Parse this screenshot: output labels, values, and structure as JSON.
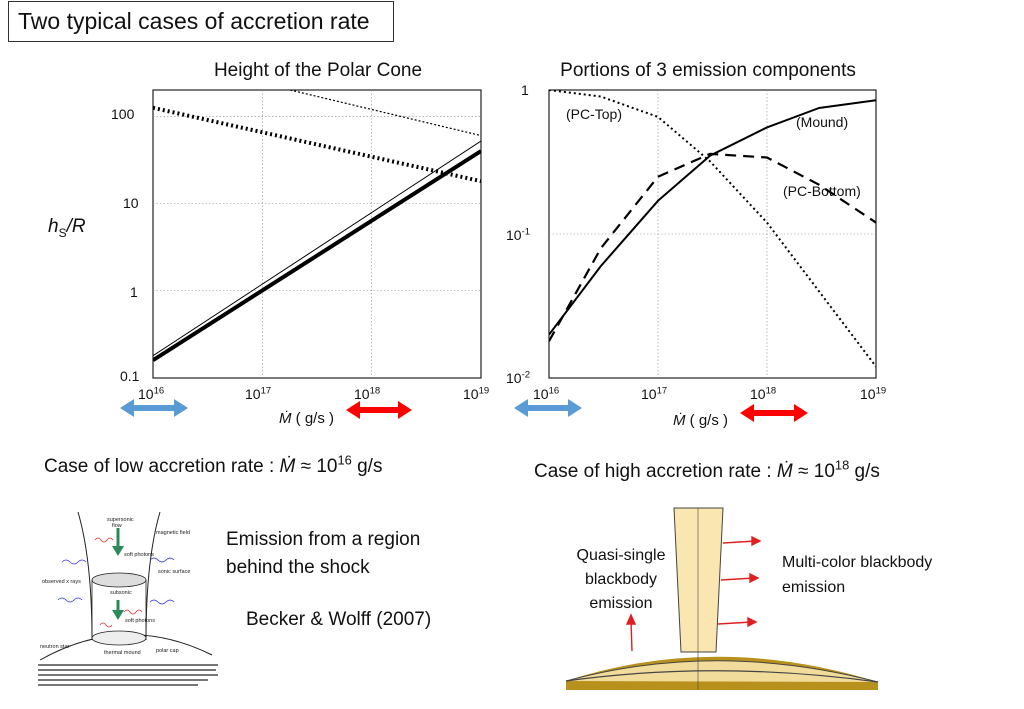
{
  "slide_title": "Two typical cases of accretion rate",
  "colors": {
    "low_case": "#2f6fb5",
    "high_case": "#e5262b",
    "blue_arrow": "#5b9bd5",
    "red_arrow": "#ff0000",
    "column_fill": "#fae6b0",
    "mound_fill": "#f2dc9b",
    "star_fill": "#b8911c"
  },
  "left_plot": {
    "title": "Height of the Polar Cone",
    "ylabel": "hS/R",
    "ylabel_main": "h",
    "ylabel_sub": "S",
    "ylabel_tail": "/R",
    "y_ticks": [
      "100",
      "10",
      "1",
      "0.1"
    ],
    "x_ticks": [
      {
        "base": "10",
        "exp": "16"
      },
      {
        "base": "10",
        "exp": "17"
      },
      {
        "base": "10",
        "exp": "18"
      },
      {
        "base": "10",
        "exp": "19"
      }
    ],
    "xlabel_unit": "( g/s )",
    "xlabel_symbol": "Ṁ"
  },
  "right_plot": {
    "title": "Portions of 3 emission components",
    "y_ticks": [
      {
        "base": "1",
        "exp": ""
      },
      {
        "base": "10",
        "exp": "-1"
      },
      {
        "base": "10",
        "exp": "-2"
      }
    ],
    "x_ticks": [
      {
        "base": "10",
        "exp": "16"
      },
      {
        "base": "10",
        "exp": "17"
      },
      {
        "base": "10",
        "exp": "18"
      },
      {
        "base": "10",
        "exp": "19"
      }
    ],
    "xlabel_unit": "( g/s )",
    "xlabel_symbol": "Ṁ",
    "labels": {
      "pc_top": "(PC-Top)",
      "mound": "(Mound)",
      "pc_bottom": "(PC-Bottom)"
    }
  },
  "chart_data": [
    {
      "type": "line",
      "title": "Height of the Polar Cone",
      "xlabel": "Ṁ ( g/s )",
      "ylabel": "hS/R",
      "xscale": "log",
      "yscale": "log",
      "xlim": [
        1e+16,
        1e+19
      ],
      "ylim": [
        0.1,
        200
      ],
      "series": [
        {
          "style": "solid-thick",
          "x": [
            1e+16,
            1e+19
          ],
          "y": [
            0.16,
            40
          ]
        },
        {
          "style": "solid-thin",
          "x": [
            1e+16,
            1e+19
          ],
          "y": [
            0.18,
            52
          ]
        },
        {
          "style": "dotted-thick",
          "x": [
            1e+16,
            1e+19
          ],
          "y": [
            125,
            18
          ]
        },
        {
          "style": "dotted-thin",
          "x": [
            1.8e+17,
            1e+19
          ],
          "y": [
            200,
            60
          ]
        }
      ]
    },
    {
      "type": "line",
      "title": "Portions of 3 emission components",
      "xlabel": "Ṁ ( g/s )",
      "xscale": "log",
      "yscale": "log",
      "xlim": [
        1e+16,
        1e+19
      ],
      "ylim": [
        0.01,
        1
      ],
      "series": [
        {
          "name": "(PC-Top)",
          "style": "dotted",
          "x": [
            1e+16,
            3e+16,
            1e+17,
            3e+17,
            1e+18,
            3e+18,
            1e+19
          ],
          "y": [
            1.0,
            0.9,
            0.65,
            0.32,
            0.12,
            0.04,
            0.012
          ]
        },
        {
          "name": "(Mound)",
          "style": "solid",
          "x": [
            1e+16,
            3e+16,
            1e+17,
            3e+17,
            1e+18,
            3e+18,
            1e+19
          ],
          "y": [
            0.02,
            0.06,
            0.17,
            0.35,
            0.55,
            0.75,
            0.85
          ]
        },
        {
          "name": "(PC-Bottom)",
          "style": "dashed",
          "x": [
            1e+16,
            3e+16,
            1e+17,
            3e+17,
            1e+18,
            3e+18,
            1e+19
          ],
          "y": [
            0.018,
            0.08,
            0.25,
            0.36,
            0.34,
            0.22,
            0.12
          ]
        }
      ]
    }
  ],
  "low_case": {
    "prefix": "Case of low accretion rate : ",
    "symbol": "Ṁ",
    "approx": " ≈ ",
    "base": "10",
    "exp": "16",
    "unit": " g/s"
  },
  "high_case": {
    "prefix": "Case of high accretion rate : ",
    "symbol": "Ṁ",
    "approx": " ≈ ",
    "base": "10",
    "exp": "18",
    "unit": " g/s"
  },
  "low_case_text": {
    "line1": "Emission from a region",
    "line2": "behind the shock",
    "citation": "Becker & Wolff (2007)"
  },
  "figure_labels": {
    "supersonic": "supersonic",
    "flow": "flow",
    "magnetic_field": "magnetic field",
    "soft_photons": "soft photons",
    "sonic_surface": "sonic surface",
    "observed_x_rays": "observed x rays",
    "subsonic": "subsonic",
    "thermal_mound": "thermal mound",
    "polar_cap": "polar cap",
    "neutron_star": "neutron star"
  },
  "high_case_text": {
    "quasi1": "Quasi-single",
    "quasi2": "blackbody",
    "quasi3": "emission",
    "multi1": "Multi-color blackbody",
    "multi2": "emission"
  }
}
